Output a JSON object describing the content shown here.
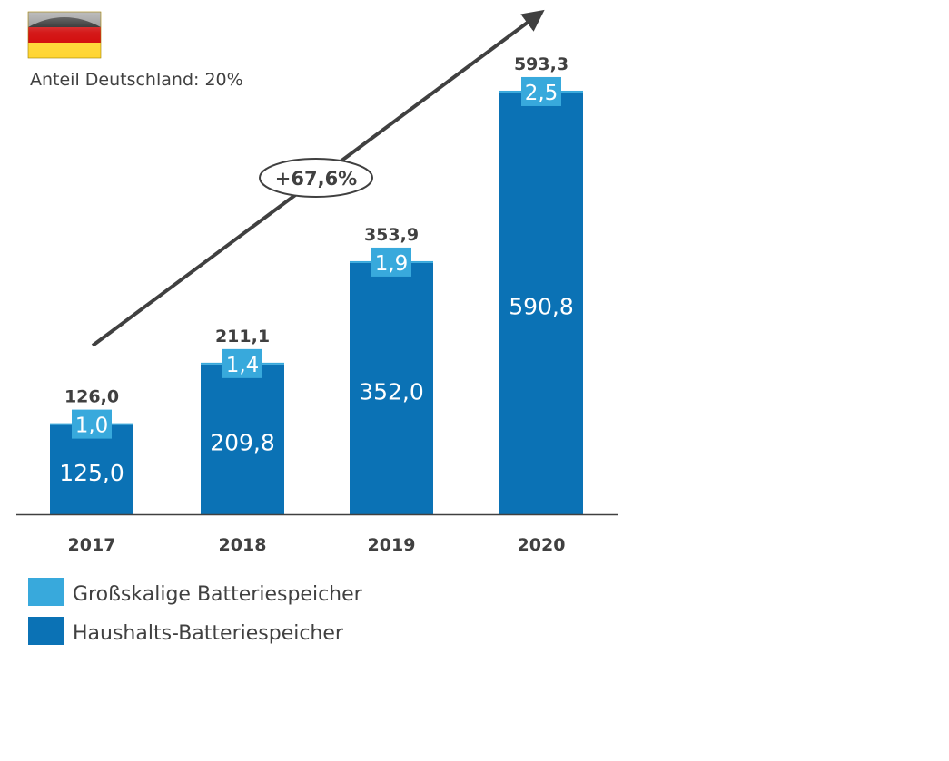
{
  "header": {
    "flag_icon": "germany-flag-icon",
    "share_text": "Anteil Deutschland: 20%"
  },
  "growth_label": "+67,6%",
  "colors": {
    "household": "#0b72b5",
    "large_scale": "#38a9dc",
    "text": "#404040",
    "arrow": "#404040"
  },
  "chart_data": {
    "type": "bar",
    "stacked": true,
    "categories": [
      "2017",
      "2018",
      "2019",
      "2020"
    ],
    "series": [
      {
        "name": "Haushalts-Batteriespeicher",
        "values": [
          125.0,
          209.8,
          352.0,
          590.8
        ],
        "labels": [
          "125,0",
          "209,8",
          "352,0",
          "590,8"
        ]
      },
      {
        "name": "Großskalige Batteriespeicher",
        "values": [
          1.0,
          1.4,
          1.9,
          2.5
        ],
        "labels": [
          "1,0",
          "1,4",
          "1,9",
          "2,5"
        ]
      }
    ],
    "totals": [
      126.0,
      211.1,
      353.9,
      593.3
    ],
    "total_labels": [
      "126,0",
      "211,1",
      "353,9",
      "593,3"
    ],
    "ylim": [
      0,
      593.3
    ],
    "grid": false,
    "legend": {
      "placement": "bottom-left",
      "entries": [
        "Großskalige Batteriespeicher",
        "Haushalts-Batteriespeicher"
      ]
    }
  }
}
